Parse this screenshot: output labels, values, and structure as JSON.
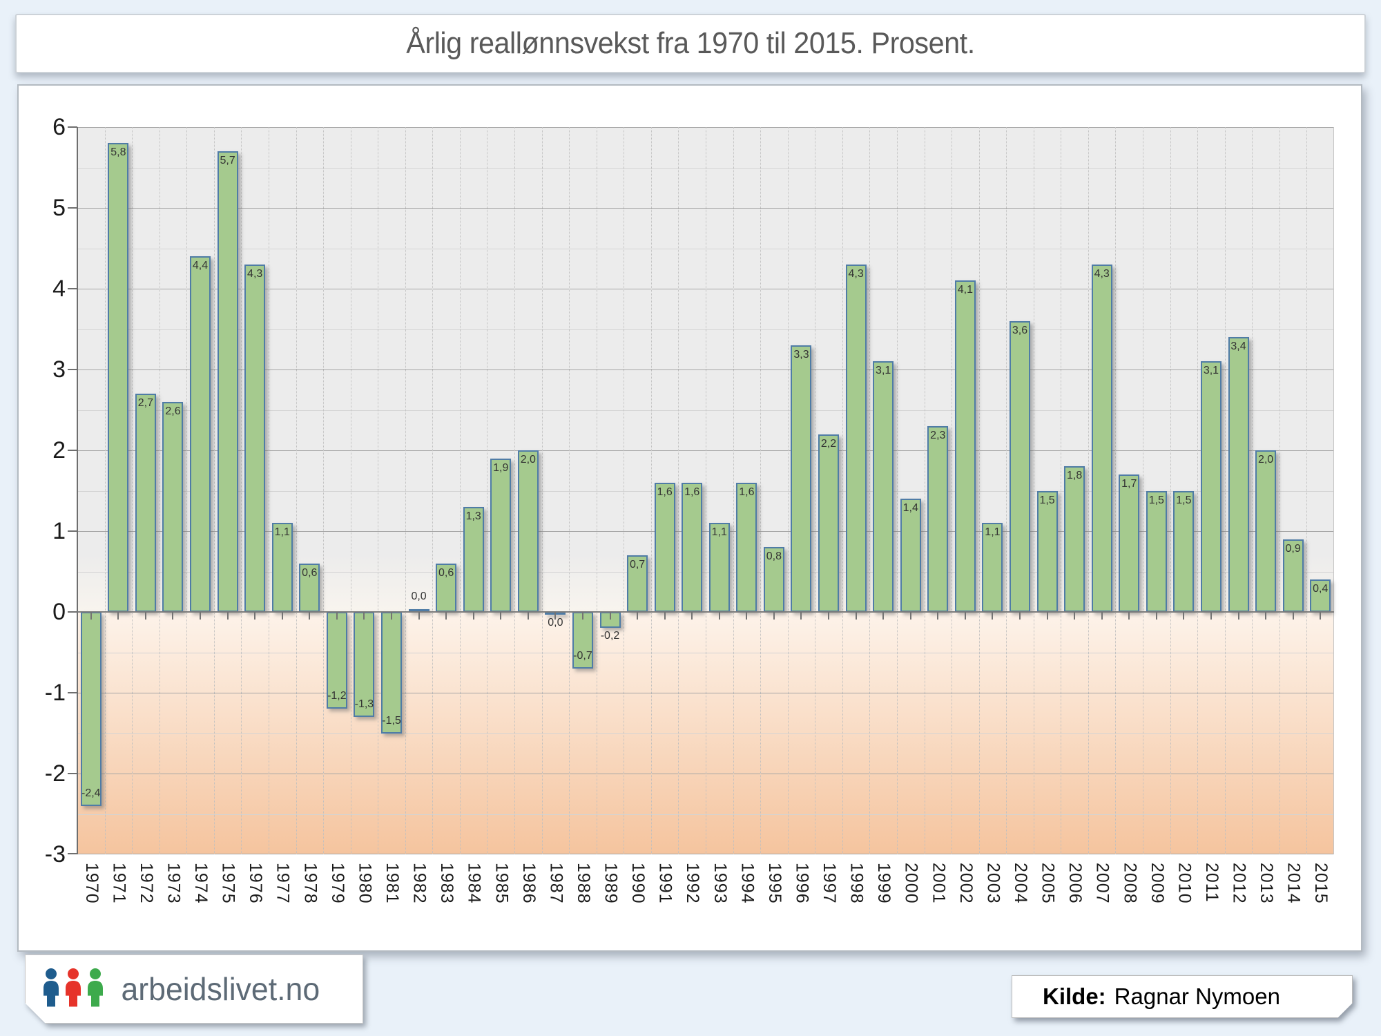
{
  "title": "Årlig reallønnsvekst fra 1970 til 2015. Prosent.",
  "footer": {
    "logo_text": "arbeidslivet.no",
    "kilde_label": "Kilde:",
    "kilde_value": "Ragnar Nymoen",
    "logo_icon_colors": [
      "#1e5c8d",
      "#e6332a",
      "#3daa4c"
    ]
  },
  "chart_data": {
    "type": "bar",
    "title": "Årlig reallønnsvekst fra 1970 til 2015. Prosent.",
    "categories": [
      "1970",
      "1971",
      "1972",
      "1973",
      "1974",
      "1975",
      "1976",
      "1977",
      "1978",
      "1979",
      "1980",
      "1981",
      "1982",
      "1983",
      "1984",
      "1985",
      "1986",
      "1987",
      "1988",
      "1989",
      "1990",
      "1991",
      "1992",
      "1993",
      "1994",
      "1995",
      "1996",
      "1997",
      "1998",
      "1999",
      "2000",
      "2001",
      "2002",
      "2003",
      "2004",
      "2005",
      "2006",
      "2007",
      "2008",
      "2009",
      "2010",
      "2011",
      "2012",
      "2013",
      "2014",
      "2015"
    ],
    "values": [
      -2.4,
      5.8,
      2.7,
      2.6,
      4.4,
      5.7,
      4.3,
      1.1,
      0.6,
      -1.2,
      -1.3,
      -1.5,
      0.0,
      0.6,
      1.3,
      1.9,
      2.0,
      0.0,
      -0.7,
      -0.2,
      0.7,
      1.6,
      1.6,
      1.1,
      1.6,
      0.8,
      3.3,
      2.2,
      4.3,
      3.1,
      1.4,
      2.3,
      4.1,
      1.1,
      3.6,
      1.5,
      1.8,
      4.3,
      1.7,
      1.5,
      1.5,
      3.1,
      3.4,
      2.0,
      0.9,
      0.4
    ],
    "labels": [
      "-2,4",
      "5,8",
      "2,7",
      "2,6",
      "4,4",
      "5,7",
      "4,3",
      "1,1",
      "0,6",
      "-1,2",
      "-1,3",
      "-1,5",
      "0,0",
      "0,6",
      "1,3",
      "1,9",
      "2,0",
      "0,0",
      "-0,7",
      "-0,2",
      "0,7",
      "1,6",
      "1,6",
      "1,1",
      "1,6",
      "0,8",
      "3,3",
      "2,2",
      "4,3",
      "3,1",
      "1,4",
      "2,3",
      "4,1",
      "1,1",
      "3,6",
      "1,5",
      "1,8",
      "4,3",
      "1,7",
      "1,5",
      "1,5",
      "3,1",
      "3,4",
      "2,0",
      "0,9",
      "0,4"
    ],
    "near_zero_direction": {
      "1982": "up",
      "1987": "down"
    },
    "ylim": [
      -3,
      6
    ],
    "y_major_ticks": [
      6,
      5,
      4,
      3,
      2,
      1,
      0,
      -1,
      -2,
      -3
    ],
    "y_minor_step": 0.5,
    "xlabel": "",
    "ylabel": "",
    "grid": true,
    "legend": false,
    "bar_fill": "#a5ca8e",
    "bar_border": "#4f7ca6",
    "positive_region_color": "#ececec",
    "negative_region_top": "#fdf3ea",
    "negative_region_bottom": "#f5c49e"
  }
}
